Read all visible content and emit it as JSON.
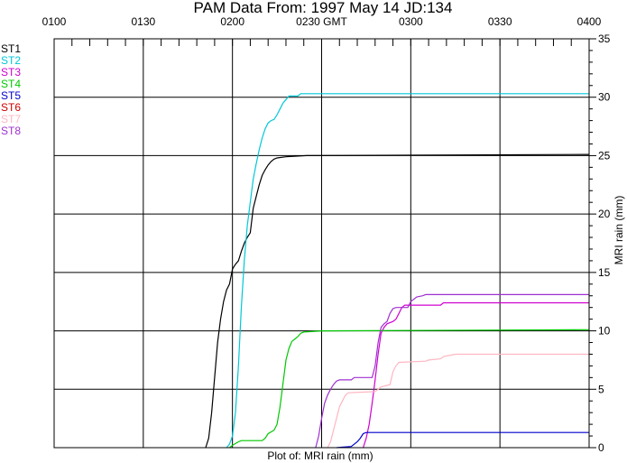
{
  "chart_data": {
    "type": "line",
    "title": "PAM Data From:  1997 May 14 JD:134",
    "xlabel": "Plot of:  MRI rain (mm)",
    "ylabel": "MRI rain (mm)",
    "x_unit_label": "GMT",
    "x_ticks": [
      {
        "t": 0,
        "label": "0100"
      },
      {
        "t": 30,
        "label": "0130"
      },
      {
        "t": 60,
        "label": "0200"
      },
      {
        "t": 90,
        "label": "0230 GMT"
      },
      {
        "t": 120,
        "label": "0300"
      },
      {
        "t": 150,
        "label": "0330"
      },
      {
        "t": 180,
        "label": "0400"
      }
    ],
    "xlim": [
      "0100",
      "0400"
    ],
    "ylim": [
      0,
      35
    ],
    "y_ticks": [
      0,
      5,
      10,
      15,
      20,
      25,
      30,
      35
    ],
    "y_axis_side": "right",
    "grid": true,
    "legend_position": "left",
    "series": [
      {
        "name": "ST1",
        "color": "#000000",
        "points": [
          [
            51,
            0
          ],
          [
            52,
            0.8
          ],
          [
            53,
            3
          ],
          [
            54,
            6
          ],
          [
            55,
            9
          ],
          [
            56,
            11
          ],
          [
            57,
            12.5
          ],
          [
            58,
            13.5
          ],
          [
            59,
            14
          ],
          [
            60,
            15.3
          ],
          [
            61,
            15.7
          ],
          [
            62,
            16
          ],
          [
            63,
            16.8
          ],
          [
            64,
            17.5
          ],
          [
            65,
            18
          ],
          [
            66,
            18.4
          ],
          [
            67,
            20.5
          ],
          [
            68,
            21.5
          ],
          [
            69,
            22.5
          ],
          [
            70,
            23.3
          ],
          [
            71,
            23.8
          ],
          [
            72,
            24.2
          ],
          [
            73,
            24.5
          ],
          [
            74,
            24.7
          ],
          [
            75,
            24.8
          ],
          [
            78,
            24.9
          ],
          [
            85,
            25
          ],
          [
            180,
            25.1
          ]
        ]
      },
      {
        "name": "ST2",
        "color": "#00c8d8",
        "points": [
          [
            58,
            0
          ],
          [
            59,
            0.3
          ],
          [
            60,
            1
          ],
          [
            61,
            3
          ],
          [
            62,
            7
          ],
          [
            63,
            12
          ],
          [
            64,
            16
          ],
          [
            65,
            19
          ],
          [
            66,
            21
          ],
          [
            67,
            23
          ],
          [
            68,
            24.3
          ],
          [
            69,
            25.5
          ],
          [
            70,
            26.5
          ],
          [
            71,
            27.3
          ],
          [
            72,
            27.8
          ],
          [
            73,
            28
          ],
          [
            74,
            28.1
          ],
          [
            75,
            28.5
          ],
          [
            76,
            29
          ],
          [
            77,
            29.5
          ],
          [
            78,
            29.8
          ],
          [
            79,
            30.1
          ],
          [
            82,
            30.1
          ],
          [
            83,
            30.3
          ],
          [
            180,
            30.3
          ]
        ]
      },
      {
        "name": "ST3",
        "color": "#d000d0",
        "points": [
          [
            104,
            0
          ],
          [
            105,
            0.8
          ],
          [
            106,
            2
          ],
          [
            107,
            3.8
          ],
          [
            108,
            5.8
          ],
          [
            109,
            8
          ],
          [
            110,
            9.8
          ],
          [
            111,
            10.3
          ],
          [
            112,
            10.6
          ],
          [
            114,
            10.8
          ],
          [
            115,
            11
          ],
          [
            116,
            11.5
          ],
          [
            117,
            12
          ],
          [
            118,
            12.2
          ],
          [
            130,
            12.2
          ],
          [
            131,
            12.4
          ],
          [
            180,
            12.4
          ]
        ]
      },
      {
        "name": "ST4",
        "color": "#00c800",
        "points": [
          [
            59,
            0
          ],
          [
            60,
            0.2
          ],
          [
            62,
            0.5
          ],
          [
            63,
            0.6
          ],
          [
            70,
            0.6
          ],
          [
            71,
            0.8
          ],
          [
            72,
            1.2
          ],
          [
            74,
            1.5
          ],
          [
            75,
            2
          ],
          [
            76,
            3.5
          ],
          [
            77,
            5.5
          ],
          [
            78,
            7.5
          ],
          [
            79,
            8.5
          ],
          [
            80,
            9.1
          ],
          [
            81,
            9.3
          ],
          [
            82,
            9.5
          ],
          [
            83,
            9.8
          ],
          [
            84,
            9.9
          ],
          [
            90,
            10
          ],
          [
            180,
            10.1
          ]
        ]
      },
      {
        "name": "ST5",
        "color": "#0000cc",
        "points": [
          [
            95,
            0
          ],
          [
            100,
            0.1
          ],
          [
            102,
            0.5
          ],
          [
            103,
            0.8
          ],
          [
            104,
            1.2
          ],
          [
            105,
            1.3
          ],
          [
            180,
            1.3
          ]
        ]
      },
      {
        "name": "ST6",
        "color": "#cc0000",
        "points": []
      },
      {
        "name": "ST7",
        "color": "#ffb6c1",
        "points": [
          [
            92,
            0
          ],
          [
            93,
            0.5
          ],
          [
            94,
            1.5
          ],
          [
            95,
            2.5
          ],
          [
            96,
            3.5
          ],
          [
            97,
            4
          ],
          [
            98,
            4.5
          ],
          [
            99,
            4.7
          ],
          [
            108,
            4.8
          ],
          [
            109,
            5
          ],
          [
            110,
            5.2
          ],
          [
            113,
            5.4
          ],
          [
            114,
            6.5
          ],
          [
            115,
            7
          ],
          [
            116,
            7.3
          ],
          [
            125,
            7.4
          ],
          [
            126,
            7.5
          ],
          [
            130,
            7.6
          ],
          [
            131,
            7.8
          ],
          [
            135,
            8
          ],
          [
            180,
            8
          ]
        ]
      },
      {
        "name": "ST8",
        "color": "#a030d0",
        "points": [
          [
            88,
            0
          ],
          [
            89,
            1
          ],
          [
            90,
            2.5
          ],
          [
            91,
            3.8
          ],
          [
            92,
            4.5
          ],
          [
            93,
            5
          ],
          [
            94,
            5.4
          ],
          [
            95,
            5.7
          ],
          [
            96,
            5.8
          ],
          [
            100,
            5.8
          ],
          [
            101,
            6
          ],
          [
            107,
            6
          ],
          [
            108,
            7
          ],
          [
            109,
            9
          ],
          [
            110,
            10.3
          ],
          [
            111,
            10.6
          ],
          [
            112,
            10.8
          ],
          [
            113,
            11.5
          ],
          [
            114,
            11.9
          ],
          [
            115,
            12
          ],
          [
            119,
            12
          ],
          [
            120,
            12.5
          ],
          [
            122,
            12.9
          ],
          [
            124,
            13
          ],
          [
            125,
            13.1
          ],
          [
            180,
            13.1
          ]
        ]
      }
    ]
  }
}
